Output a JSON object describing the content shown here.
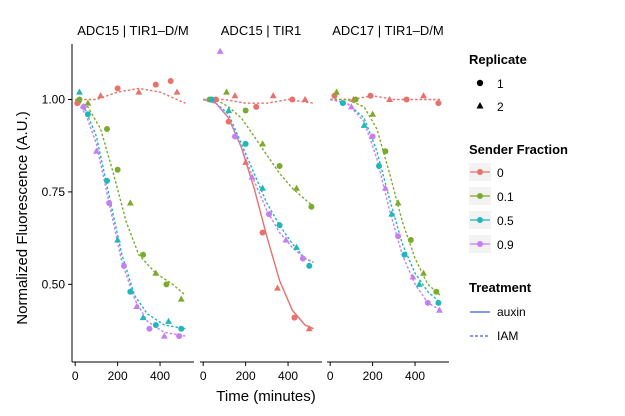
{
  "chart_data": {
    "type": "scatter",
    "ylabel": "Normalized Fluorescence (A.U.)",
    "xlabel": "Time (minutes)",
    "xlim": [
      -15,
      560
    ],
    "ylim": [
      0.29,
      1.15
    ],
    "x_ticks": [
      0,
      200,
      400
    ],
    "x_tick_labels": [
      "0",
      "200",
      "400"
    ],
    "y_ticks": [
      0.5,
      0.75,
      1.0
    ],
    "y_tick_labels": [
      "0.50",
      "0.75",
      "1.00"
    ],
    "colors": {
      "0": "#e8716b",
      "0.1": "#7caa2d",
      "0.5": "#1fb6bc",
      "0.9": "#c57ff0"
    },
    "legend": {
      "replicate_title": "Replicate",
      "replicate_items": [
        "1",
        "2"
      ],
      "fraction_title": "Sender Fraction",
      "fraction_items": [
        "0",
        "0.1",
        "0.5",
        "0.9"
      ],
      "treatment_title": "Treatment",
      "treatment_items": [
        "auxin",
        "IAM"
      ]
    },
    "panels": [
      {
        "title": "ADC15 | TIR1–D/M",
        "curves": [
          {
            "fraction": "0",
            "treatment": "IAM",
            "x": [
              0,
              100,
              200,
              300,
              400,
              520
            ],
            "y": [
              1.0,
              1.0,
              1.02,
              1.03,
              1.02,
              0.99
            ]
          },
          {
            "fraction": "0.1",
            "treatment": "IAM",
            "x": [
              0,
              60,
              120,
              180,
              240,
              300,
              380,
              460,
              520
            ],
            "y": [
              1.0,
              0.98,
              0.92,
              0.8,
              0.67,
              0.58,
              0.53,
              0.5,
              0.47
            ]
          },
          {
            "fraction": "0.5",
            "treatment": "IAM",
            "x": [
              0,
              50,
              100,
              160,
              220,
              280,
              340,
              420,
              520
            ],
            "y": [
              1.0,
              0.97,
              0.9,
              0.74,
              0.58,
              0.47,
              0.42,
              0.39,
              0.38
            ]
          },
          {
            "fraction": "0.9",
            "treatment": "IAM",
            "x": [
              0,
              50,
              100,
              160,
              220,
              280,
              340,
              420,
              520
            ],
            "y": [
              1.0,
              0.96,
              0.88,
              0.72,
              0.56,
              0.46,
              0.4,
              0.37,
              0.36
            ]
          }
        ],
        "points": [
          {
            "f": "0",
            "r": "1",
            "x": 10,
            "y": 0.99
          },
          {
            "f": "0",
            "r": "2",
            "x": 120,
            "y": 1.01
          },
          {
            "f": "0",
            "r": "1",
            "x": 200,
            "y": 1.03
          },
          {
            "f": "0",
            "r": "2",
            "x": 300,
            "y": 1.02
          },
          {
            "f": "0",
            "r": "1",
            "x": 380,
            "y": 1.04
          },
          {
            "f": "0",
            "r": "1",
            "x": 450,
            "y": 1.05
          },
          {
            "f": "0",
            "r": "2",
            "x": 480,
            "y": 1.02
          },
          {
            "f": "0.1",
            "r": "1",
            "x": 20,
            "y": 1.0
          },
          {
            "f": "0.1",
            "r": "2",
            "x": 60,
            "y": 0.99
          },
          {
            "f": "0.1",
            "r": "1",
            "x": 150,
            "y": 0.92
          },
          {
            "f": "0.1",
            "r": "1",
            "x": 200,
            "y": 0.81
          },
          {
            "f": "0.1",
            "r": "2",
            "x": 260,
            "y": 0.72
          },
          {
            "f": "0.1",
            "r": "1",
            "x": 320,
            "y": 0.58
          },
          {
            "f": "0.1",
            "r": "2",
            "x": 380,
            "y": 0.53
          },
          {
            "f": "0.1",
            "r": "1",
            "x": 430,
            "y": 0.5
          },
          {
            "f": "0.1",
            "r": "2",
            "x": 500,
            "y": 0.46
          },
          {
            "f": "0.5",
            "r": "2",
            "x": 20,
            "y": 1.02
          },
          {
            "f": "0.5",
            "r": "1",
            "x": 60,
            "y": 0.96
          },
          {
            "f": "0.5",
            "r": "1",
            "x": 150,
            "y": 0.78
          },
          {
            "f": "0.5",
            "r": "2",
            "x": 200,
            "y": 0.62
          },
          {
            "f": "0.5",
            "r": "1",
            "x": 260,
            "y": 0.48
          },
          {
            "f": "0.5",
            "r": "2",
            "x": 320,
            "y": 0.41
          },
          {
            "f": "0.5",
            "r": "1",
            "x": 380,
            "y": 0.39
          },
          {
            "f": "0.5",
            "r": "2",
            "x": 440,
            "y": 0.4
          },
          {
            "f": "0.5",
            "r": "1",
            "x": 500,
            "y": 0.38
          },
          {
            "f": "0.9",
            "r": "1",
            "x": 40,
            "y": 0.98
          },
          {
            "f": "0.9",
            "r": "2",
            "x": 100,
            "y": 0.86
          },
          {
            "f": "0.9",
            "r": "1",
            "x": 160,
            "y": 0.72
          },
          {
            "f": "0.9",
            "r": "1",
            "x": 230,
            "y": 0.55
          },
          {
            "f": "0.9",
            "r": "2",
            "x": 290,
            "y": 0.44
          },
          {
            "f": "0.9",
            "r": "1",
            "x": 350,
            "y": 0.38
          },
          {
            "f": "0.9",
            "r": "2",
            "x": 420,
            "y": 0.36
          },
          {
            "f": "0.9",
            "r": "1",
            "x": 490,
            "y": 0.36
          }
        ]
      },
      {
        "title": "ADC15 | TIR1",
        "curves": [
          {
            "fraction": "0",
            "treatment": "IAM",
            "x": [
              0,
              100,
              200,
              300,
              400,
              520
            ],
            "y": [
              1.0,
              1.0,
              0.99,
              0.99,
              1.0,
              0.99
            ]
          },
          {
            "fraction": "0",
            "treatment": "auxin",
            "x": [
              0,
              60,
              120,
              180,
              240,
              300,
              360,
              420,
              480,
              520
            ],
            "y": [
              1.0,
              0.99,
              0.95,
              0.87,
              0.76,
              0.63,
              0.51,
              0.43,
              0.39,
              0.38
            ]
          },
          {
            "fraction": "0.1",
            "treatment": "IAM",
            "x": [
              0,
              60,
              120,
              180,
              240,
              300,
              360,
              420,
              480,
              520
            ],
            "y": [
              1.0,
              1.0,
              0.98,
              0.95,
              0.9,
              0.85,
              0.8,
              0.76,
              0.73,
              0.71
            ]
          },
          {
            "fraction": "0.5",
            "treatment": "IAM",
            "x": [
              0,
              60,
              120,
              180,
              240,
              300,
              360,
              420,
              480,
              520
            ],
            "y": [
              1.0,
              0.99,
              0.96,
              0.88,
              0.8,
              0.72,
              0.66,
              0.61,
              0.57,
              0.56
            ]
          },
          {
            "fraction": "0.9",
            "treatment": "IAM",
            "x": [
              0,
              60,
              120,
              180,
              240,
              300,
              360,
              420,
              480,
              520
            ],
            "y": [
              1.0,
              0.99,
              0.95,
              0.87,
              0.78,
              0.7,
              0.64,
              0.6,
              0.57,
              0.56
            ]
          }
        ],
        "points": [
          {
            "f": "0",
            "r": "1",
            "x": 60,
            "y": 1.0
          },
          {
            "f": "0",
            "r": "2",
            "x": 150,
            "y": 1.01
          },
          {
            "f": "0",
            "r": "1",
            "x": 250,
            "y": 0.98
          },
          {
            "f": "0",
            "r": "2",
            "x": 330,
            "y": 1.01
          },
          {
            "f": "0",
            "r": "1",
            "x": 420,
            "y": 1.0
          },
          {
            "f": "0",
            "r": "2",
            "x": 480,
            "y": 1.0
          },
          {
            "f": "0",
            "r": "1",
            "x": 120,
            "y": 0.94
          },
          {
            "f": "0",
            "r": "2",
            "x": 200,
            "y": 0.83
          },
          {
            "f": "0",
            "r": "1",
            "x": 280,
            "y": 0.64
          },
          {
            "f": "0",
            "r": "2",
            "x": 350,
            "y": 0.49
          },
          {
            "f": "0",
            "r": "1",
            "x": 430,
            "y": 0.41
          },
          {
            "f": "0",
            "r": "2",
            "x": 500,
            "y": 0.38
          },
          {
            "f": "0.1",
            "r": "1",
            "x": 30,
            "y": 1.0
          },
          {
            "f": "0.1",
            "r": "2",
            "x": 110,
            "y": 1.02
          },
          {
            "f": "0.1",
            "r": "1",
            "x": 200,
            "y": 0.97
          },
          {
            "f": "0.1",
            "r": "2",
            "x": 280,
            "y": 0.88
          },
          {
            "f": "0.1",
            "r": "1",
            "x": 360,
            "y": 0.82
          },
          {
            "f": "0.1",
            "r": "2",
            "x": 440,
            "y": 0.76
          },
          {
            "f": "0.1",
            "r": "1",
            "x": 510,
            "y": 0.71
          },
          {
            "f": "0.5",
            "r": "1",
            "x": 40,
            "y": 1.0
          },
          {
            "f": "0.5",
            "r": "2",
            "x": 120,
            "y": 0.97
          },
          {
            "f": "0.5",
            "r": "1",
            "x": 200,
            "y": 0.88
          },
          {
            "f": "0.5",
            "r": "2",
            "x": 280,
            "y": 0.76
          },
          {
            "f": "0.5",
            "r": "1",
            "x": 360,
            "y": 0.66
          },
          {
            "f": "0.5",
            "r": "2",
            "x": 440,
            "y": 0.6
          },
          {
            "f": "0.5",
            "r": "1",
            "x": 500,
            "y": 0.55
          },
          {
            "f": "0.9",
            "r": "2",
            "x": 80,
            "y": 1.13
          },
          {
            "f": "0.9",
            "r": "1",
            "x": 150,
            "y": 0.9
          },
          {
            "f": "0.9",
            "r": "2",
            "x": 230,
            "y": 0.79
          },
          {
            "f": "0.9",
            "r": "1",
            "x": 310,
            "y": 0.69
          },
          {
            "f": "0.9",
            "r": "2",
            "x": 390,
            "y": 0.62
          },
          {
            "f": "0.9",
            "r": "1",
            "x": 470,
            "y": 0.57
          }
        ]
      },
      {
        "title": "ADC17 | TIR1–D/M",
        "curves": [
          {
            "fraction": "0",
            "treatment": "IAM",
            "x": [
              0,
              100,
              200,
              300,
              400,
              520
            ],
            "y": [
              1.0,
              1.0,
              1.01,
              1.0,
              1.0,
              1.0
            ]
          },
          {
            "fraction": "0.1",
            "treatment": "IAM",
            "x": [
              0,
              80,
              160,
              220,
              280,
              340,
              400,
              460,
              520
            ],
            "y": [
              1.0,
              1.0,
              0.98,
              0.92,
              0.8,
              0.67,
              0.57,
              0.5,
              0.47
            ]
          },
          {
            "fraction": "0.5",
            "treatment": "IAM",
            "x": [
              0,
              80,
              160,
              220,
              280,
              340,
              400,
              460,
              520
            ],
            "y": [
              1.0,
              0.99,
              0.95,
              0.86,
              0.73,
              0.61,
              0.53,
              0.48,
              0.45
            ]
          },
          {
            "fraction": "0.9",
            "treatment": "IAM",
            "x": [
              0,
              80,
              160,
              220,
              280,
              340,
              400,
              460,
              520
            ],
            "y": [
              1.0,
              0.99,
              0.94,
              0.84,
              0.7,
              0.58,
              0.5,
              0.45,
              0.43
            ]
          }
        ],
        "points": [
          {
            "f": "0",
            "r": "1",
            "x": 20,
            "y": 1.01
          },
          {
            "f": "0",
            "r": "2",
            "x": 110,
            "y": 1.0
          },
          {
            "f": "0",
            "r": "1",
            "x": 190,
            "y": 1.01
          },
          {
            "f": "0",
            "r": "2",
            "x": 280,
            "y": 1.0
          },
          {
            "f": "0",
            "r": "1",
            "x": 360,
            "y": 1.0
          },
          {
            "f": "0",
            "r": "2",
            "x": 440,
            "y": 1.01
          },
          {
            "f": "0",
            "r": "1",
            "x": 510,
            "y": 0.99
          },
          {
            "f": "0.1",
            "r": "2",
            "x": 30,
            "y": 1.02
          },
          {
            "f": "0.1",
            "r": "1",
            "x": 120,
            "y": 1.0
          },
          {
            "f": "0.1",
            "r": "2",
            "x": 200,
            "y": 0.96
          },
          {
            "f": "0.1",
            "r": "1",
            "x": 260,
            "y": 0.86
          },
          {
            "f": "0.1",
            "r": "2",
            "x": 320,
            "y": 0.72
          },
          {
            "f": "0.1",
            "r": "1",
            "x": 380,
            "y": 0.62
          },
          {
            "f": "0.1",
            "r": "2",
            "x": 440,
            "y": 0.53
          },
          {
            "f": "0.1",
            "r": "1",
            "x": 500,
            "y": 0.48
          },
          {
            "f": "0.5",
            "r": "1",
            "x": 60,
            "y": 0.99
          },
          {
            "f": "0.5",
            "r": "2",
            "x": 160,
            "y": 0.93
          },
          {
            "f": "0.5",
            "r": "1",
            "x": 230,
            "y": 0.82
          },
          {
            "f": "0.5",
            "r": "2",
            "x": 290,
            "y": 0.69
          },
          {
            "f": "0.5",
            "r": "1",
            "x": 350,
            "y": 0.58
          },
          {
            "f": "0.5",
            "r": "2",
            "x": 420,
            "y": 0.5
          },
          {
            "f": "0.5",
            "r": "1",
            "x": 510,
            "y": 0.45
          },
          {
            "f": "0.9",
            "r": "2",
            "x": 100,
            "y": 0.98
          },
          {
            "f": "0.9",
            "r": "1",
            "x": 200,
            "y": 0.9
          },
          {
            "f": "0.9",
            "r": "2",
            "x": 260,
            "y": 0.76
          },
          {
            "f": "0.9",
            "r": "1",
            "x": 320,
            "y": 0.63
          },
          {
            "f": "0.9",
            "r": "2",
            "x": 390,
            "y": 0.52
          },
          {
            "f": "0.9",
            "r": "1",
            "x": 460,
            "y": 0.45
          },
          {
            "f": "0.9",
            "r": "2",
            "x": 515,
            "y": 0.43
          }
        ]
      }
    ]
  }
}
